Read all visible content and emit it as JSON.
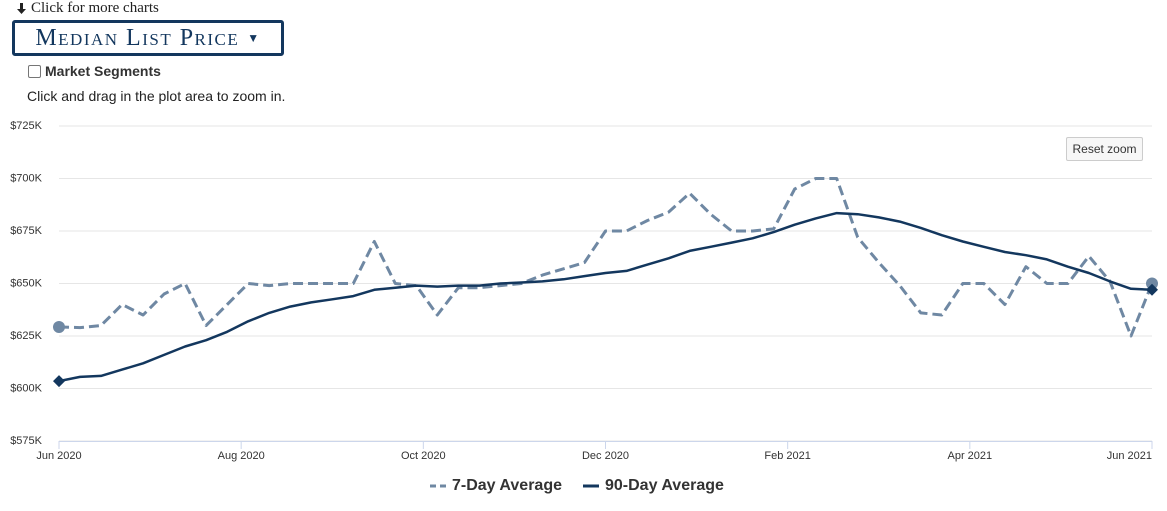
{
  "header": {
    "more_link": "Click for more charts",
    "menu_title": "Median List Price",
    "checkbox_label": "Market Segments",
    "hint": "Click and drag in the plot area to zoom in.",
    "reset_button": "Reset zoom"
  },
  "chart_data": {
    "type": "line",
    "x_tick_labels": [
      "Jun 2020",
      "Aug 2020",
      "Oct 2020",
      "Dec 2020",
      "Feb 2021",
      "Apr 2021",
      "Jun 2021"
    ],
    "ylim": [
      575000,
      725000
    ],
    "yticks": [
      {
        "value": 575000,
        "label": "$575K"
      },
      {
        "value": 600000,
        "label": "$600K"
      },
      {
        "value": 625000,
        "label": "$625K"
      },
      {
        "value": 650000,
        "label": "$650K"
      },
      {
        "value": 675000,
        "label": "$675K"
      },
      {
        "value": 700000,
        "label": "$700K"
      },
      {
        "value": 725000,
        "label": "$725K"
      }
    ],
    "grid": true,
    "legend": "bottom",
    "series": [
      {
        "name": "7-Day Average",
        "color": "#6f88a3",
        "dashed": true,
        "marker": "circle",
        "values": [
          629300,
          629000,
          630000,
          640000,
          635000,
          645000,
          650000,
          630000,
          640000,
          650000,
          649000,
          650000,
          650000,
          650000,
          650000,
          670000,
          650000,
          649000,
          635000,
          648000,
          648000,
          649000,
          650000,
          654000,
          657000,
          660000,
          675000,
          675000,
          680000,
          684000,
          693000,
          683000,
          675000,
          675000,
          676000,
          695000,
          700000,
          700000,
          672000,
          660000,
          649000,
          636000,
          635000,
          650000,
          650000,
          640000,
          658000,
          650000,
          650000,
          663000,
          651000,
          625000,
          650000
        ]
      },
      {
        "name": "90-Day Average",
        "color": "#13375e",
        "dashed": false,
        "marker": "diamond",
        "values": [
          603500,
          605500,
          606000,
          609000,
          612000,
          616000,
          620000,
          623000,
          627000,
          632000,
          636000,
          639000,
          641000,
          642500,
          644000,
          647000,
          648000,
          649000,
          648500,
          649000,
          649000,
          650000,
          650500,
          651000,
          652000,
          653500,
          655000,
          656000,
          659000,
          662000,
          665500,
          667500,
          669500,
          671500,
          674500,
          678000,
          681000,
          683500,
          683000,
          681500,
          679500,
          676500,
          673000,
          670000,
          667500,
          665000,
          663500,
          661500,
          658000,
          655000,
          651000,
          647500,
          647000
        ]
      }
    ]
  }
}
